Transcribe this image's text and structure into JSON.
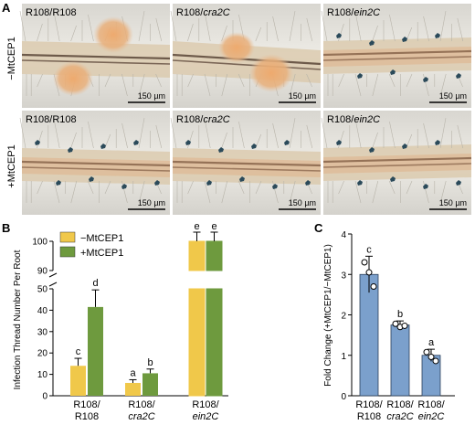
{
  "panel_labels": {
    "a": "A",
    "b": "B",
    "c": "C"
  },
  "micrographs": {
    "row_labels": [
      "−MtCEP1",
      "+MtCEP1"
    ],
    "tiles": [
      {
        "label_prefix": "R108/",
        "label_italic": "R108",
        "italic": false,
        "scale": "150 µm"
      },
      {
        "label_prefix": "R108/",
        "label_italic": "cra2C",
        "italic": true,
        "scale": "150 µm"
      },
      {
        "label_prefix": "R108/",
        "label_italic": "ein2C",
        "italic": true,
        "scale": "150 µm"
      },
      {
        "label_prefix": "R108/",
        "label_italic": "R108",
        "italic": false,
        "scale": "150 µm"
      },
      {
        "label_prefix": "R108/",
        "label_italic": "cra2C",
        "italic": true,
        "scale": "150 µm"
      },
      {
        "label_prefix": "R108/",
        "label_italic": "ein2C",
        "italic": true,
        "scale": "150 µm"
      }
    ]
  },
  "chart_data": [
    {
      "type": "bar",
      "panel": "B",
      "ylabel": "Infection Thread Number Per Root",
      "y_axis": "broken",
      "y_segments": [
        {
          "range": [
            0,
            50
          ],
          "ticks": [
            0,
            10,
            20,
            30,
            40,
            50
          ]
        },
        {
          "range": [
            90,
            100
          ],
          "ticks": [
            90,
            100
          ]
        }
      ],
      "categories": [
        {
          "line1": "R108/",
          "line2": "R108",
          "italic": false
        },
        {
          "line1": "R108/",
          "line2": "cra2C",
          "italic": true
        },
        {
          "line1": "R108/",
          "line2": "ein2C",
          "italic": true
        }
      ],
      "series": [
        {
          "name": "−MtCEP1",
          "color": "#f0c84a",
          "values": [
            14,
            6,
            100
          ],
          "errors": [
            3.5,
            1.5,
            0
          ],
          "letters": [
            "c",
            "a",
            "e"
          ]
        },
        {
          "name": "+MtCEP1",
          "color": "#6e9a3e",
          "values": [
            41.5,
            10.5,
            100
          ],
          "errors": [
            8,
            2,
            0
          ],
          "letters": [
            "d",
            "b",
            "e"
          ]
        }
      ],
      "legend": "top-left",
      "plus_error_only": true
    },
    {
      "type": "bar",
      "panel": "C",
      "ylabel": "Fold Change (+MtCEP1/−MtCEP1)",
      "ylim": [
        0,
        4
      ],
      "yticks": [
        0,
        1,
        2,
        3,
        4
      ],
      "categories": [
        {
          "line1": "R108/",
          "line2": "R108",
          "italic": false
        },
        {
          "line1": "R108/",
          "line2": "cra2C",
          "italic": true
        },
        {
          "line1": "R108/",
          "line2": "ein2C",
          "italic": true
        }
      ],
      "values": [
        3.0,
        1.75,
        1.0
      ],
      "errors": [
        0.45,
        0.1,
        0.15
      ],
      "letters": [
        "c",
        "b",
        "a"
      ],
      "points": [
        [
          3.3,
          3.05,
          2.7
        ],
        [
          1.78,
          1.7,
          1.73
        ],
        [
          1.08,
          0.96,
          0.86
        ]
      ],
      "color": "#7ba0cc"
    }
  ]
}
